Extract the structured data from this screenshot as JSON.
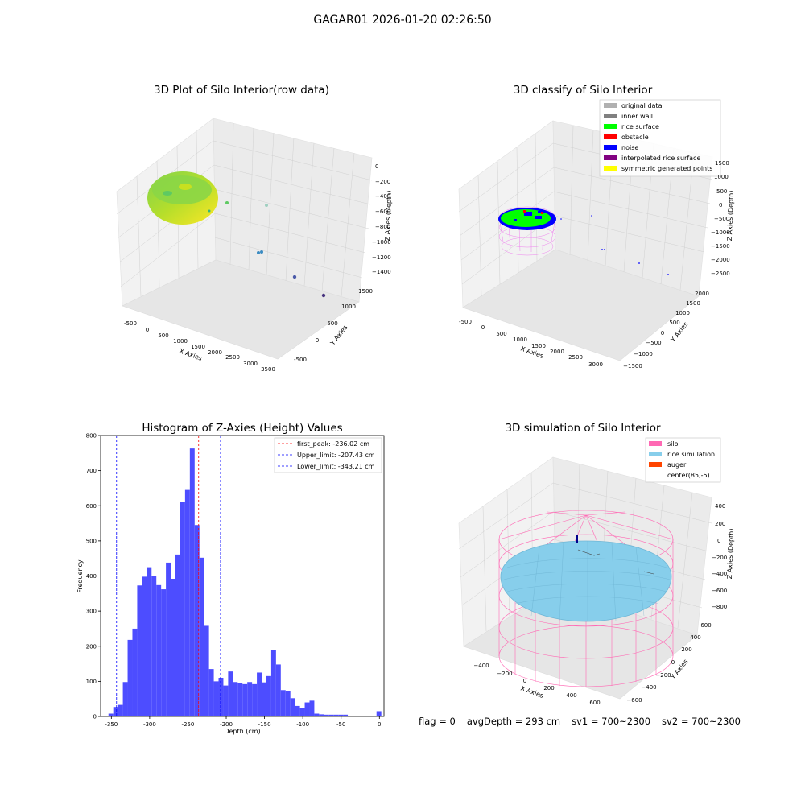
{
  "suptitle": "GAGAR01 2026-01-20 02:26:50",
  "status": {
    "flag": "flag = 0",
    "avg_depth": "avgDepth = 293 cm",
    "sv1": "sv1 = 700~2300",
    "sv2": "sv2 = 700~2300"
  },
  "colors": {
    "hist_bar": "#4d4dff",
    "first_peak": "#ff0000",
    "limits": "#0000ff",
    "silo": "#ff69b4",
    "rice_sim": "#87ceeb",
    "auger": "#ff4500",
    "rice_surface": "#00ff00",
    "noise": "#0000ff"
  },
  "chart_data": [
    {
      "type": "scatter",
      "title": "3D Plot of Silo Interior(row data)",
      "xlabel": "X Axies",
      "ylabel": "Y Axies",
      "zlabel": "Z Axies (Depth)",
      "x_ticks": [
        "-500",
        "0",
        "500",
        "1000",
        "1500",
        "2000",
        "2500",
        "3000",
        "3500"
      ],
      "y_ticks": [
        "-500",
        "0",
        "500",
        "1000",
        "1500"
      ],
      "z_ticks": [
        "0",
        "−200",
        "−400",
        "−600",
        "−800",
        "−1000",
        "−1200",
        "−1400"
      ],
      "colormap": "viridis"
    },
    {
      "type": "scatter",
      "title": "3D classify of Silo Interior",
      "xlabel": "X Axies",
      "ylabel": "Y Axies",
      "zlabel": "Z Axies (Depth)",
      "x_ticks": [
        "-500",
        "0",
        "500",
        "1000",
        "1500",
        "2000",
        "2500",
        "3000"
      ],
      "y_ticks": [
        "−1500",
        "−1000",
        "−500",
        "0",
        "500",
        "1000",
        "1500",
        "2000"
      ],
      "z_ticks": [
        "1500",
        "1000",
        "500",
        "0",
        "−500",
        "−1000",
        "−1500",
        "−2000",
        "−2500"
      ],
      "legend": [
        {
          "label": "original data",
          "color": "#b0b0b0"
        },
        {
          "label": "inner wall",
          "color": "#808080"
        },
        {
          "label": "rice surface",
          "color": "#00ff00"
        },
        {
          "label": "obstacle",
          "color": "#ff0000"
        },
        {
          "label": "noise",
          "color": "#0000ff"
        },
        {
          "label": "interpolated rice surface",
          "color": "#800080"
        },
        {
          "label": "symmetric generated points",
          "color": "#ffff00"
        }
      ],
      "legend_position": "top-right"
    },
    {
      "type": "bar",
      "title": "Histogram of Z-Axies (Height) Values",
      "xlabel": "Depth (cm)",
      "ylabel": "Frequency",
      "xlim": [
        -364,
        6
      ],
      "ylim": [
        0,
        800
      ],
      "x_ticks": [
        -350,
        -300,
        -250,
        -200,
        -150,
        -100,
        -50,
        0
      ],
      "y_ticks": [
        0,
        100,
        200,
        300,
        400,
        500,
        600,
        700,
        800
      ],
      "bin_width": 6.25,
      "bin_left": [
        -353.75,
        -347.5,
        -341.25,
        -335,
        -328.75,
        -322.5,
        -316.25,
        -310,
        -303.75,
        -297.5,
        -291.25,
        -285,
        -278.75,
        -272.5,
        -266.25,
        -260,
        -253.75,
        -247.5,
        -241.25,
        -235,
        -228.75,
        -222.5,
        -216.25,
        -210,
        -203.75,
        -197.5,
        -191.25,
        -185,
        -178.75,
        -172.5,
        -166.25,
        -160,
        -153.75,
        -147.5,
        -141.25,
        -135,
        -128.75,
        -122.5,
        -116.25,
        -110,
        -103.75,
        -97.5,
        -91.25,
        -85,
        -78.75,
        -72.5,
        -66.25,
        -60,
        -53.75,
        -47.5,
        -41.25,
        -35,
        -28.75,
        -22.5,
        -16.25,
        -10,
        -3.75
      ],
      "values": [
        8,
        27,
        33,
        98,
        218,
        250,
        373,
        398,
        425,
        400,
        374,
        362,
        438,
        392,
        461,
        612,
        645,
        763,
        545,
        452,
        258,
        135,
        100,
        110,
        88,
        128,
        98,
        95,
        92,
        98,
        92,
        125,
        97,
        115,
        190,
        148,
        75,
        72,
        52,
        30,
        25,
        40,
        45,
        8,
        6,
        5,
        5,
        5,
        5,
        5,
        0,
        0,
        0,
        0,
        0,
        0,
        15
      ],
      "lines": [
        {
          "label": "first_peak: -236.02 cm",
          "x": -236.02,
          "color": "#ff0000"
        },
        {
          "label": "Upper_limit: -207.43 cm",
          "x": -207.43,
          "color": "#0000ff"
        },
        {
          "label": "Lower_limit: -343.21 cm",
          "x": -343.21,
          "color": "#0000ff"
        }
      ],
      "legend_position": "top-right"
    },
    {
      "type": "scatter",
      "title": "3D simulation of Silo Interior",
      "xlabel": "X Axies",
      "ylabel": "Y Axies",
      "zlabel": "Z Axies (Depth)",
      "x_ticks": [
        "−400",
        "−200",
        "0",
        "200",
        "400",
        "600"
      ],
      "y_ticks": [
        "−600",
        "−400",
        "−200",
        "0",
        "200",
        "400",
        "600"
      ],
      "z_ticks": [
        "400",
        "200",
        "0",
        "−200",
        "−400",
        "−600",
        "−800"
      ],
      "legend": [
        {
          "label": "silo",
          "color": "#ff69b4"
        },
        {
          "label": "rice simulation",
          "color": "#87ceeb"
        },
        {
          "label": "auger",
          "color": "#ff4500"
        },
        {
          "label": "center(85,-5)",
          "color": ""
        }
      ],
      "legend_position": "top-right"
    }
  ]
}
